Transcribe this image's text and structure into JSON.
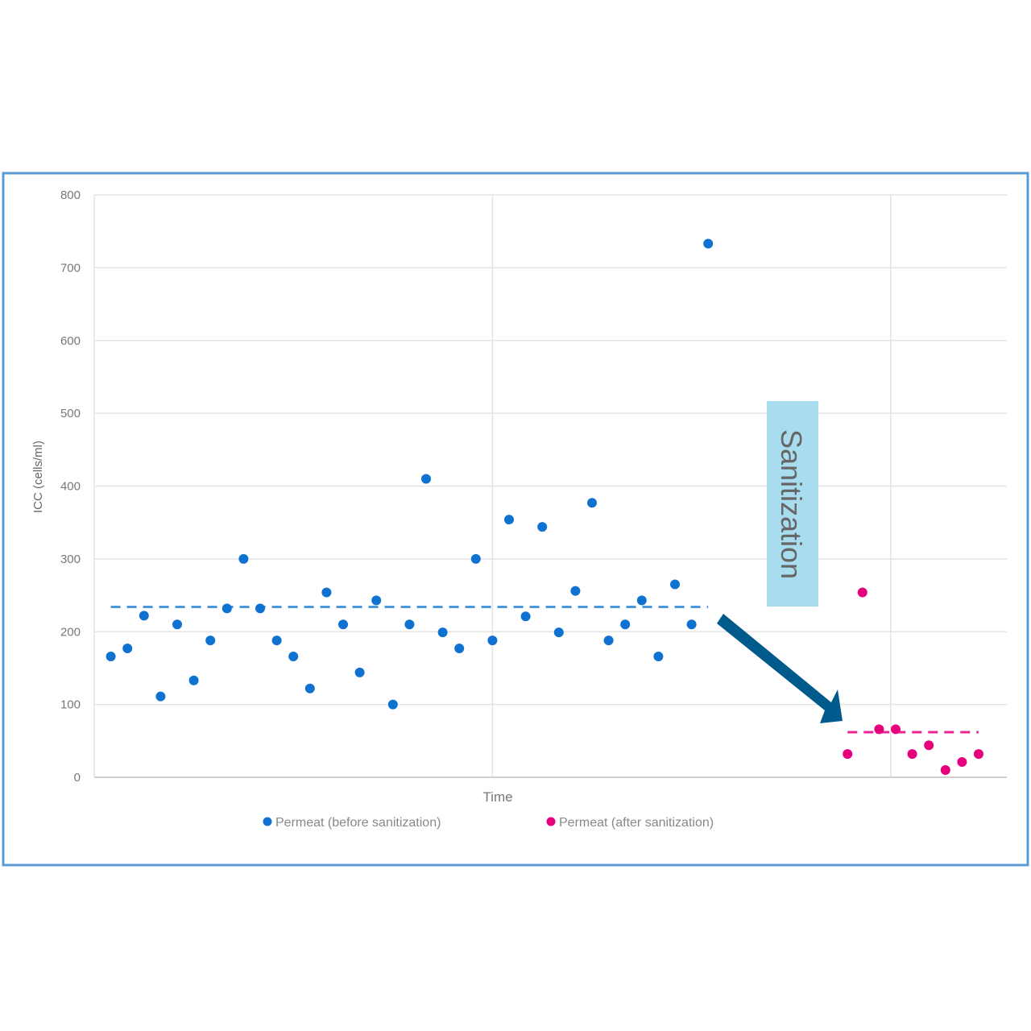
{
  "chart_data": {
    "type": "scatter",
    "title": "",
    "xlabel": "Time",
    "ylabel": "ICC (cells/ml)",
    "xlim": [
      0,
      55
    ],
    "ylim": [
      0,
      800
    ],
    "yticks": [
      "0",
      "100",
      "200",
      "300",
      "400",
      "500",
      "600",
      "700",
      "800"
    ],
    "ytick_values": [
      0,
      100,
      200,
      300,
      400,
      500,
      600,
      700,
      800
    ],
    "x_gridlines": [
      24,
      48
    ],
    "grid": true,
    "legend_position": "bottom",
    "series": [
      {
        "name": "Permeat (before sanitization)",
        "color": "#0f72d0",
        "x": [
          1,
          2,
          3,
          4,
          5,
          6,
          7,
          8,
          9,
          10,
          11,
          12,
          13,
          14,
          15,
          16,
          17,
          18,
          19,
          20,
          21,
          22,
          23,
          24,
          25,
          26,
          27,
          28,
          29,
          30,
          31,
          32,
          33,
          34,
          35,
          36,
          37
        ],
        "y": [
          166,
          177,
          222,
          111,
          210,
          133,
          188,
          232,
          300,
          232,
          188,
          166,
          122,
          254,
          210,
          144,
          243,
          100,
          210,
          410,
          199,
          177,
          300,
          188,
          354,
          221,
          344,
          199,
          256,
          377,
          188,
          210,
          243,
          166,
          265,
          210,
          733
        ],
        "mean": 234,
        "mean_x_range": [
          1,
          37
        ]
      },
      {
        "name": "Permeat (after sanitization)",
        "color": "#e6007e",
        "x": [
          45.4,
          46.3,
          47.3,
          48.3,
          49.3,
          50.3,
          51.3,
          52.3,
          53.3
        ],
        "y": [
          32,
          254,
          66,
          66,
          32,
          44,
          10,
          21,
          32
        ],
        "mean": 62,
        "mean_x_range": [
          45.4,
          53.3
        ]
      }
    ],
    "annotations": [
      {
        "text": "Sanitization",
        "background": "#a8dcef",
        "color": "#666666"
      }
    ],
    "arrow_color": "#005a8c",
    "frame_color": "#5b9bd5"
  }
}
